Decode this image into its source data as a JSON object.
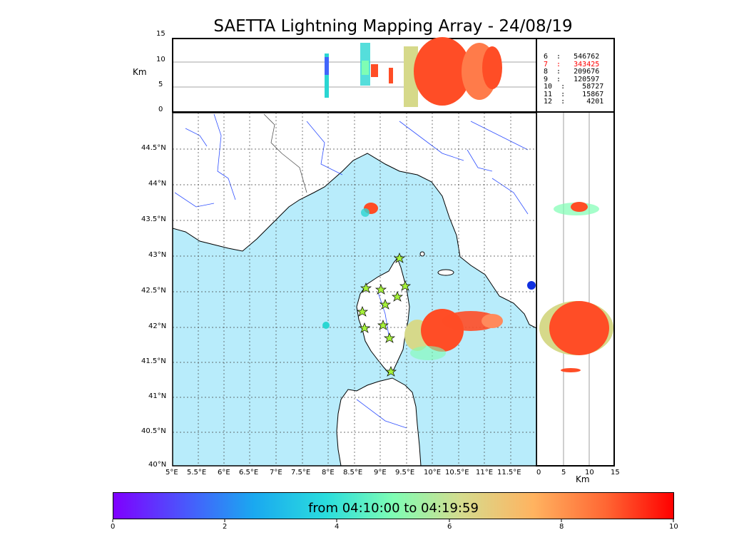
{
  "title": "SAETTA Lightning Mapping Array - 24/08/19",
  "top_panel": {
    "unit_label": "Km",
    "y_ticks": [
      "15",
      "10",
      "5",
      "0"
    ]
  },
  "side_panel": {
    "unit_label": "Km",
    "x_ticks": [
      "0",
      "5",
      "10",
      "15"
    ]
  },
  "map": {
    "lat_labels": [
      "44.5°N",
      "44°N",
      "43.5°N",
      "43°N",
      "42.5°N",
      "42°N",
      "41.5°N",
      "41°N",
      "40.5°N",
      "40°N"
    ],
    "lon_labels": [
      "5°E",
      "5.5°E",
      "6°E",
      "6.5°E",
      "7°E",
      "7.5°E",
      "8°E",
      "8.5°E",
      "9°E",
      "9.5°E",
      "10°E",
      "10.5°E",
      "11°E",
      "11.5°E"
    ],
    "sea_color": "#b8ecfb",
    "station_marker": "star"
  },
  "counts": [
    {
      "label": "6  :   546762",
      "color": "#000000"
    },
    {
      "label": "7  :   343425",
      "color": "#ff0000"
    },
    {
      "label": "8  :   209676",
      "color": "#000000"
    },
    {
      "label": "9  :   120597",
      "color": "#000000"
    },
    {
      "label": "10  :    58727",
      "color": "#000000"
    },
    {
      "label": "11  :    15867",
      "color": "#000000"
    },
    {
      "label": "12  :     4201",
      "color": "#000000"
    }
  ],
  "colorbar": {
    "label": "from 04:10:00 to 04:19:59",
    "ticks": [
      "0",
      "2",
      "4",
      "6",
      "8",
      "10"
    ]
  }
}
